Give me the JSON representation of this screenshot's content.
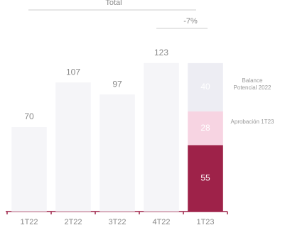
{
  "chart_data": {
    "type": "bar",
    "stacked": true,
    "annotations": [
      "Total",
      "-7%"
    ],
    "categories": [
      "1T22",
      "2T22",
      "3T22",
      "4T22",
      "1T23"
    ],
    "series": [
      {
        "colors": [
          "#f5f5f8",
          "#f5f5f8",
          "#f5f5f8",
          "#f5f5f8",
          "#9e2249"
        ],
        "values": [
          70,
          107,
          97,
          123,
          55
        ]
      },
      {
        "name": "Aprobación 1T23",
        "color": "#f7d4e2",
        "values": [
          null,
          null,
          null,
          null,
          28
        ]
      },
      {
        "name": "Balance Potencial 2022",
        "color": "#ededf3",
        "values": [
          null,
          null,
          null,
          null,
          40
        ]
      }
    ],
    "ylim": [
      0,
      140
    ]
  }
}
